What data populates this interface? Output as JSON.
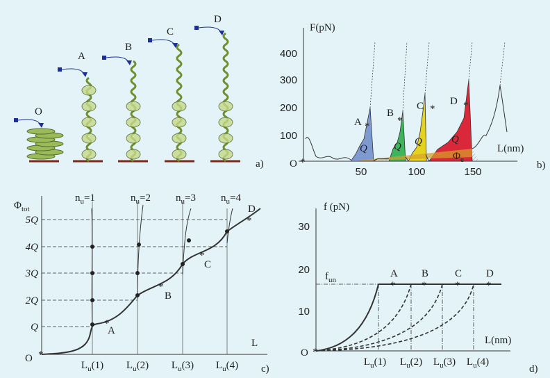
{
  "panel_a": {
    "label": "a)",
    "states": [
      "O",
      "A",
      "B",
      "C",
      "D"
    ]
  },
  "panel_b": {
    "label": "b)",
    "y_axis": "F(pN)",
    "x_axis": "L(nm)",
    "yticks": [
      100,
      200,
      300,
      400
    ],
    "xticks": [
      50,
      100,
      150
    ],
    "origin": "O",
    "peaks": [
      "A",
      "B",
      "C",
      "D"
    ],
    "area_label": "Q",
    "phi": {
      "main": "Φ",
      "sub": "e"
    }
  },
  "panel_c": {
    "label": "c)",
    "y_axis": {
      "main": "Φ",
      "sub": "tot"
    },
    "x_axis": "L",
    "origin": "O",
    "levels": [
      "Q",
      "2Q",
      "3Q",
      "4Q",
      "5Q"
    ],
    "unfold_labels": [
      {
        "main": "n",
        "sub": "u",
        "rest": "=1"
      },
      {
        "main": "n",
        "sub": "u",
        "rest": "=2"
      },
      {
        "main": "n",
        "sub": "u",
        "rest": "=3"
      },
      {
        "main": "n",
        "sub": "u",
        "rest": "=4"
      }
    ],
    "lengths": [
      {
        "main": "L",
        "sub": "u",
        "rest": "(1)"
      },
      {
        "main": "L",
        "sub": "u",
        "rest": "(2)"
      },
      {
        "main": "L",
        "sub": "u",
        "rest": "(3)"
      },
      {
        "main": "L",
        "sub": "u",
        "rest": "(4)"
      }
    ],
    "points": [
      "A",
      "B",
      "C",
      "D"
    ]
  },
  "panel_d": {
    "label": "d)",
    "y_axis": "f (pN)",
    "x_axis": "L(nm)",
    "yticks": [
      10,
      20,
      30
    ],
    "origin": "O",
    "force": {
      "main": "f",
      "sub": "un"
    },
    "points": [
      "A",
      "B",
      "C",
      "D"
    ],
    "lengths": [
      {
        "main": "L",
        "sub": "u",
        "rest": "(1)"
      },
      {
        "main": "L",
        "sub": "u",
        "rest": "(2)"
      },
      {
        "main": "L",
        "sub": "u",
        "rest": "(3)"
      },
      {
        "main": "L",
        "sub": "u",
        "rest": "(4)"
      }
    ]
  }
}
